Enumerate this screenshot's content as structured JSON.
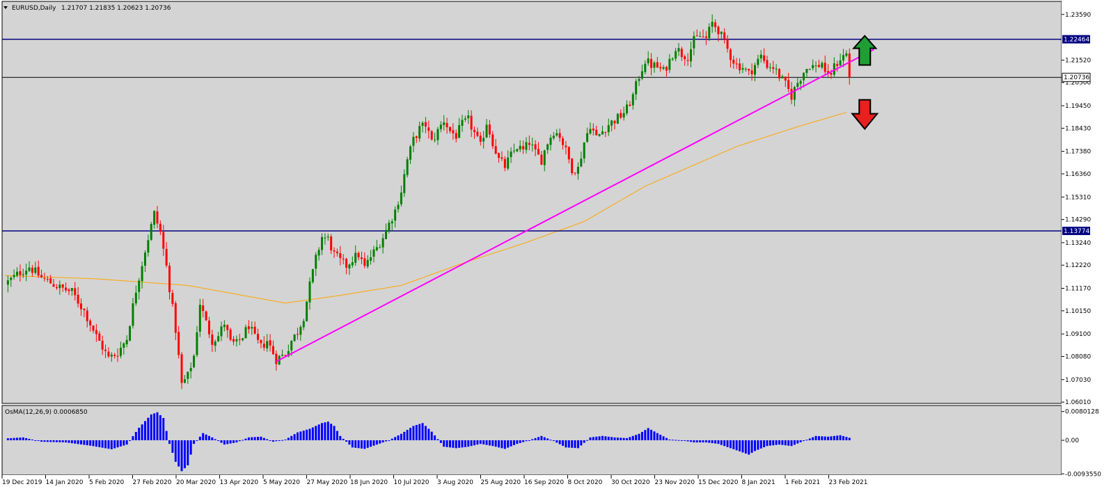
{
  "header": {
    "symbol_timeframe": "EURUSD,Daily",
    "ohlc": "1.21707 1.21835 1.20623 1.20736"
  },
  "indicator": {
    "label": "OsMA(12,26,9) 0.0006850"
  },
  "colors": {
    "background": "#d4d4d4",
    "bull": "#008000",
    "bear": "#ff0000",
    "hline": "#000080",
    "price_line": "#000000",
    "trendline": "#ff00ff",
    "moving_average": "#ffa500",
    "osma": "#0000ff",
    "up_arrow": "#1e9e33",
    "down_arrow": "#e8201e"
  },
  "chart_data": {
    "type": "candlestick",
    "price_axis": {
      "ticks": [
        "1.23590",
        "1.21520",
        "1.20500",
        "1.19450",
        "1.18430",
        "1.17380",
        "1.16360",
        "1.15310",
        "1.14290",
        "1.13240",
        "1.12220",
        "1.11170",
        "1.10150",
        "1.09100",
        "1.08080",
        "1.07030",
        "1.06010"
      ],
      "ylim": [
        1.0595,
        1.2415
      ]
    },
    "horizontal_lines": [
      {
        "value": 1.22464,
        "label": "1.22464"
      },
      {
        "value": 1.13774,
        "label": "1.13774"
      }
    ],
    "current_price": {
      "value": 1.20736,
      "label": "1.20736"
    },
    "x_axis": {
      "labels": [
        "19 Dec 2019",
        "14 Jan 2020",
        "5 Feb 2020",
        "27 Feb 2020",
        "20 Mar 2020",
        "13 Apr 2020",
        "5 May 2020",
        "27 May 2020",
        "18 Jun 2020",
        "10 Jul 2020",
        "3 Aug 2020",
        "25 Aug 2020",
        "16 Sep 2020",
        "8 Oct 2020",
        "30 Oct 2020",
        "23 Nov 2020",
        "15 Dec 2020",
        "8 Jan 2021",
        "1 Feb 2021",
        "23 Feb 2021"
      ]
    },
    "close_path": [
      [
        0,
        1.1135
      ],
      [
        5,
        1.119
      ],
      [
        8,
        1.1215
      ],
      [
        12,
        1.1165
      ],
      [
        18,
        1.112
      ],
      [
        22,
        1.11
      ],
      [
        26,
        1.1015
      ],
      [
        30,
        1.09
      ],
      [
        34,
        1.08
      ],
      [
        37,
        1.0825
      ],
      [
        40,
        1.089
      ],
      [
        43,
        1.111
      ],
      [
        46,
        1.129
      ],
      [
        49,
        1.1455
      ],
      [
        51,
        1.137
      ],
      [
        53,
        1.1215
      ],
      [
        56,
        1.093
      ],
      [
        58,
        1.068
      ],
      [
        60,
        1.072
      ],
      [
        62,
        1.081
      ],
      [
        64,
        1.105
      ],
      [
        66,
        1.096
      ],
      [
        68,
        1.088
      ],
      [
        70,
        1.09
      ],
      [
        72,
        1.096
      ],
      [
        74,
        1.087
      ],
      [
        76,
        1.0865
      ],
      [
        78,
        1.09
      ],
      [
        80,
        1.095
      ],
      [
        82,
        1.089
      ],
      [
        84,
        1.085
      ],
      [
        86,
        1.088
      ],
      [
        89,
        1.0795
      ],
      [
        92,
        1.082
      ],
      [
        94,
        1.088
      ],
      [
        96,
        1.092
      ],
      [
        98,
        1.099
      ],
      [
        100,
        1.113
      ],
      [
        102,
        1.125
      ],
      [
        104,
        1.135
      ],
      [
        106,
        1.134
      ],
      [
        108,
        1.127
      ],
      [
        110,
        1.124
      ],
      [
        112,
        1.122
      ],
      [
        114,
        1.125
      ],
      [
        116,
        1.127
      ],
      [
        118,
        1.121
      ],
      [
        120,
        1.126
      ],
      [
        122,
        1.13
      ],
      [
        124,
        1.135
      ],
      [
        126,
        1.141
      ],
      [
        128,
        1.147
      ],
      [
        130,
        1.156
      ],
      [
        132,
        1.17
      ],
      [
        134,
        1.179
      ],
      [
        136,
        1.184
      ],
      [
        138,
        1.186
      ],
      [
        140,
        1.178
      ],
      [
        142,
        1.183
      ],
      [
        144,
        1.188
      ],
      [
        146,
        1.183
      ],
      [
        148,
        1.181
      ],
      [
        150,
        1.186
      ],
      [
        152,
        1.188
      ],
      [
        154,
        1.182
      ],
      [
        156,
        1.176
      ],
      [
        158,
        1.187
      ],
      [
        160,
        1.178
      ],
      [
        162,
        1.17
      ],
      [
        164,
        1.167
      ],
      [
        166,
        1.172
      ],
      [
        168,
        1.176
      ],
      [
        170,
        1.174
      ],
      [
        172,
        1.178
      ],
      [
        174,
        1.173
      ],
      [
        176,
        1.17
      ],
      [
        178,
        1.178
      ],
      [
        180,
        1.183
      ],
      [
        182,
        1.181
      ],
      [
        184,
        1.174
      ],
      [
        186,
        1.166
      ],
      [
        188,
        1.166
      ],
      [
        190,
        1.178
      ],
      [
        192,
        1.186
      ],
      [
        194,
        1.18
      ],
      [
        196,
        1.183
      ],
      [
        198,
        1.186
      ],
      [
        200,
        1.188
      ],
      [
        202,
        1.19
      ],
      [
        204,
        1.193
      ],
      [
        206,
        1.199
      ],
      [
        208,
        1.208
      ],
      [
        210,
        1.215
      ],
      [
        212,
        1.213
      ],
      [
        214,
        1.212
      ],
      [
        216,
        1.21
      ],
      [
        218,
        1.215
      ],
      [
        220,
        1.221
      ],
      [
        222,
        1.218
      ],
      [
        224,
        1.217
      ],
      [
        226,
        1.224
      ],
      [
        228,
        1.226
      ],
      [
        230,
        1.225
      ],
      [
        232,
        1.232
      ],
      [
        234,
        1.229
      ],
      [
        236,
        1.223
      ],
      [
        238,
        1.217
      ],
      [
        240,
        1.213
      ],
      [
        242,
        1.212
      ],
      [
        244,
        1.209
      ],
      [
        246,
        1.213
      ],
      [
        248,
        1.217
      ],
      [
        250,
        1.213
      ],
      [
        252,
        1.212
      ],
      [
        254,
        1.208
      ],
      [
        256,
        1.204
      ],
      [
        258,
        1.199
      ],
      [
        260,
        1.205
      ],
      [
        262,
        1.21
      ],
      [
        264,
        1.213
      ],
      [
        266,
        1.212
      ],
      [
        268,
        1.214
      ],
      [
        270,
        1.207
      ],
      [
        272,
        1.212
      ],
      [
        274,
        1.216
      ],
      [
        276,
        1.218
      ],
      [
        277,
        1.2074
      ]
    ],
    "moving_average_path": [
      [
        0,
        1.1175
      ],
      [
        30,
        1.116
      ],
      [
        60,
        1.113
      ],
      [
        80,
        1.108
      ],
      [
        92,
        1.105
      ],
      [
        110,
        1.1085
      ],
      [
        130,
        1.113
      ],
      [
        150,
        1.123
      ],
      [
        170,
        1.132
      ],
      [
        190,
        1.142
      ],
      [
        210,
        1.158
      ],
      [
        240,
        1.176
      ],
      [
        260,
        1.185
      ],
      [
        276,
        1.1915
      ]
    ],
    "trendline": [
      [
        89,
        1.0785
      ],
      [
        285,
        1.22
      ]
    ],
    "osma": {
      "label": "OsMA(12,26,9) 0.0006850",
      "ylim": [
        -0.0095,
        0.0095
      ],
      "ticks": [
        "0.0080128",
        "0.00",
        "-0.0093550"
      ],
      "path": [
        [
          0,
          0.0005
        ],
        [
          6,
          0.0008
        ],
        [
          12,
          -0.0004
        ],
        [
          20,
          -0.0006
        ],
        [
          28,
          -0.0015
        ],
        [
          35,
          -0.0025
        ],
        [
          40,
          -0.0012
        ],
        [
          44,
          0.0035
        ],
        [
          48,
          0.0072
        ],
        [
          50,
          0.0078
        ],
        [
          52,
          0.0062
        ],
        [
          54,
          -0.001
        ],
        [
          56,
          -0.006
        ],
        [
          58,
          -0.0086
        ],
        [
          60,
          -0.007
        ],
        [
          62,
          -0.001
        ],
        [
          65,
          0.002
        ],
        [
          68,
          0.0008
        ],
        [
          72,
          -0.0012
        ],
        [
          76,
          -0.0006
        ],
        [
          80,
          0.0008
        ],
        [
          84,
          0.001
        ],
        [
          88,
          -0.0004
        ],
        [
          92,
          0.0002
        ],
        [
          96,
          0.0022
        ],
        [
          100,
          0.0032
        ],
        [
          104,
          0.0048
        ],
        [
          106,
          0.0052
        ],
        [
          108,
          0.004
        ],
        [
          110,
          0.0012
        ],
        [
          114,
          -0.002
        ],
        [
          118,
          -0.0024
        ],
        [
          122,
          -0.0012
        ],
        [
          126,
          0.0
        ],
        [
          130,
          0.0018
        ],
        [
          134,
          0.004
        ],
        [
          137,
          0.0048
        ],
        [
          140,
          0.0024
        ],
        [
          144,
          -0.0018
        ],
        [
          148,
          -0.0022
        ],
        [
          152,
          -0.0018
        ],
        [
          156,
          -0.001
        ],
        [
          160,
          -0.0016
        ],
        [
          164,
          -0.0024
        ],
        [
          168,
          -0.001
        ],
        [
          172,
          0.0
        ],
        [
          176,
          0.0012
        ],
        [
          180,
          -0.0002
        ],
        [
          184,
          -0.002
        ],
        [
          188,
          -0.0022
        ],
        [
          192,
          0.0008
        ],
        [
          196,
          0.0012
        ],
        [
          200,
          0.0008
        ],
        [
          204,
          0.0006
        ],
        [
          208,
          0.0018
        ],
        [
          211,
          0.0034
        ],
        [
          214,
          0.002
        ],
        [
          218,
          0.0002
        ],
        [
          222,
          0.0
        ],
        [
          226,
          -0.0006
        ],
        [
          230,
          -0.0006
        ],
        [
          234,
          -0.001
        ],
        [
          238,
          -0.0022
        ],
        [
          242,
          -0.0034
        ],
        [
          244,
          -0.004
        ],
        [
          246,
          -0.003
        ],
        [
          250,
          -0.0016
        ],
        [
          254,
          -0.0012
        ],
        [
          258,
          -0.0016
        ],
        [
          262,
          -0.0002
        ],
        [
          266,
          0.0012
        ],
        [
          270,
          0.001
        ],
        [
          274,
          0.0014
        ],
        [
          277,
          0.0007
        ]
      ]
    },
    "annotations": [
      "up-arrow",
      "down-arrow"
    ]
  }
}
